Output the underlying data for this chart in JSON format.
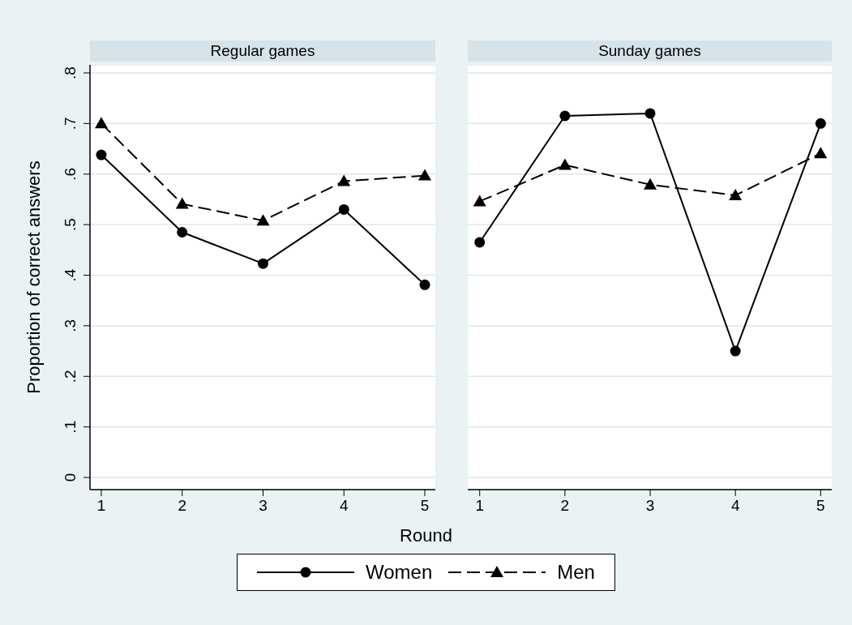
{
  "chart_data": [
    {
      "type": "line",
      "title": "Regular games",
      "ylabel": "Proportion of correct answers",
      "xlabel": "Round",
      "x": [
        1,
        2,
        3,
        4,
        5
      ],
      "xlim": [
        0.86,
        5.13
      ],
      "xticks": [
        1,
        2,
        3,
        4,
        5
      ],
      "ylim": [
        -0.024,
        0.816
      ],
      "yticks": [
        0,
        {
          "value": 0.1,
          "label": ".1"
        },
        {
          "value": 0.2,
          "label": ".2"
        },
        {
          "value": 0.3,
          "label": ".3"
        },
        {
          "value": 0.4,
          "label": ".4"
        },
        {
          "value": 0.5,
          "label": ".5"
        },
        {
          "value": 0.6,
          "label": ".6"
        },
        {
          "value": 0.7,
          "label": ".7"
        },
        {
          "value": 0.8,
          "label": ".8"
        }
      ],
      "grid": "y",
      "legend": "bottom",
      "series": [
        {
          "name": "Women",
          "color": "#000000",
          "marker": "circle",
          "line_style": "solid",
          "values": [
            0.638,
            0.485,
            0.423,
            0.53,
            0.381
          ]
        },
        {
          "name": "Men",
          "color": "#000000",
          "marker": "triangle",
          "line_style": "dashed",
          "values": [
            0.7,
            0.541,
            0.508,
            0.586,
            0.597
          ]
        }
      ]
    },
    {
      "type": "line",
      "title": "Sunday games",
      "x": [
        1,
        2,
        3,
        4,
        5
      ],
      "xlim": [
        0.86,
        5.13
      ],
      "xticks": [
        1,
        2,
        3,
        4,
        5
      ],
      "ylim": [
        -0.024,
        0.816
      ],
      "yticks": [
        {
          "value": 0,
          "label": null
        },
        {
          "value": 0.1,
          "label": null
        },
        {
          "value": 0.2,
          "label": null
        },
        {
          "value": 0.3,
          "label": null
        },
        {
          "value": 0.4,
          "label": null
        },
        {
          "value": 0.5,
          "label": null
        },
        {
          "value": 0.6,
          "label": null
        },
        {
          "value": 0.7,
          "label": null
        },
        {
          "value": 0.8,
          "label": null
        }
      ],
      "grid": "y",
      "tick_labels": "x",
      "series": [
        {
          "color": "#000000",
          "marker": "circle",
          "line_style": "solid",
          "values": [
            0.465,
            0.715,
            0.72,
            0.25,
            0.7
          ]
        },
        {
          "color": "#000000",
          "marker": "triangle",
          "line_style": "dashed",
          "values": [
            0.546,
            0.618,
            0.579,
            0.558,
            0.641
          ]
        }
      ]
    }
  ]
}
